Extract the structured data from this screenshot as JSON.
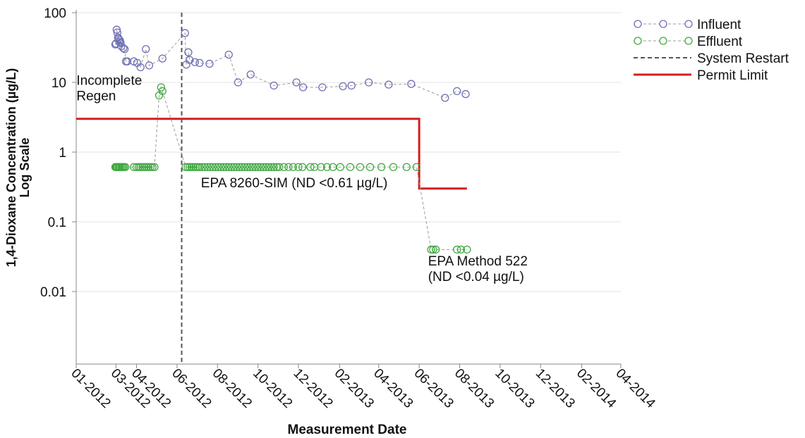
{
  "chart_data": {
    "type": "scatter",
    "title": "",
    "xlabel": "Measurement Date",
    "ylabel_line1": "1,4-Dioxane Concentration (µg/L)",
    "ylabel_line2": "Log Scale",
    "y_scale": "log",
    "ylim": [
      0.001,
      100
    ],
    "y_ticks": [
      {
        "value": 100,
        "label": "100"
      },
      {
        "value": 10,
        "label": "10"
      },
      {
        "value": 1,
        "label": "1"
      },
      {
        "value": 0.1,
        "label": "0.1"
      },
      {
        "value": 0.01,
        "label": "0.01"
      }
    ],
    "xlim": [
      "2012-01-01",
      "2014-04-01"
    ],
    "x_ticks": [
      {
        "date": "2012-01-01",
        "label": "01-2012"
      },
      {
        "date": "2012-03-01",
        "label": "03-2012"
      },
      {
        "date": "2012-04-01",
        "label": "04-2012"
      },
      {
        "date": "2012-06-01",
        "label": "06-2012"
      },
      {
        "date": "2012-08-01",
        "label": "08-2012"
      },
      {
        "date": "2012-10-01",
        "label": "10-2012"
      },
      {
        "date": "2012-12-01",
        "label": "12-2012"
      },
      {
        "date": "2013-02-01",
        "label": "02-2013"
      },
      {
        "date": "2013-04-01",
        "label": "04-2013"
      },
      {
        "date": "2013-06-01",
        "label": "06-2013"
      },
      {
        "date": "2013-08-01",
        "label": "08-2013"
      },
      {
        "date": "2013-10-01",
        "label": "10-2013"
      },
      {
        "date": "2013-12-01",
        "label": "12-2013"
      },
      {
        "date": "2014-02-01",
        "label": "02-2014"
      },
      {
        "date": "2014-04-01",
        "label": "04-2014"
      }
    ],
    "grid": "horizontal",
    "legend_position": "top-right",
    "series": [
      {
        "name": "Influent",
        "color": "#6f6fb5",
        "points": [
          {
            "x": "2012-02-29",
            "y": 35
          },
          {
            "x": "2012-03-01",
            "y": 36
          },
          {
            "x": "2012-03-02",
            "y": 57
          },
          {
            "x": "2012-03-03",
            "y": 52
          },
          {
            "x": "2012-03-04",
            "y": 44
          },
          {
            "x": "2012-03-05",
            "y": 42
          },
          {
            "x": "2012-03-06",
            "y": 38
          },
          {
            "x": "2012-03-07",
            "y": 40
          },
          {
            "x": "2012-03-08",
            "y": 37
          },
          {
            "x": "2012-03-09",
            "y": 33
          },
          {
            "x": "2012-03-12",
            "y": 31
          },
          {
            "x": "2012-03-14",
            "y": 30
          },
          {
            "x": "2012-03-16",
            "y": 20
          },
          {
            "x": "2012-03-18",
            "y": 20
          },
          {
            "x": "2012-03-28",
            "y": 20
          },
          {
            "x": "2012-04-02",
            "y": 19
          },
          {
            "x": "2012-04-07",
            "y": 16.5
          },
          {
            "x": "2012-04-15",
            "y": 30
          },
          {
            "x": "2012-04-20",
            "y": 17.5
          },
          {
            "x": "2012-05-10",
            "y": 22
          },
          {
            "x": "2012-06-13",
            "y": 51
          },
          {
            "x": "2012-06-15",
            "y": 18
          },
          {
            "x": "2012-06-18",
            "y": 27
          },
          {
            "x": "2012-06-20",
            "y": 21
          },
          {
            "x": "2012-06-28",
            "y": 19.5
          },
          {
            "x": "2012-07-05",
            "y": 19
          },
          {
            "x": "2012-07-20",
            "y": 18.5
          },
          {
            "x": "2012-08-18",
            "y": 25
          },
          {
            "x": "2012-09-01",
            "y": 10
          },
          {
            "x": "2012-09-20",
            "y": 13
          },
          {
            "x": "2012-10-25",
            "y": 9
          },
          {
            "x": "2012-11-28",
            "y": 10
          },
          {
            "x": "2012-12-08",
            "y": 8.5
          },
          {
            "x": "2013-01-06",
            "y": 8.5
          },
          {
            "x": "2013-02-06",
            "y": 8.8
          },
          {
            "x": "2013-02-19",
            "y": 9
          },
          {
            "x": "2013-03-17",
            "y": 10
          },
          {
            "x": "2013-04-16",
            "y": 9.3
          },
          {
            "x": "2013-05-20",
            "y": 9.5
          },
          {
            "x": "2013-07-10",
            "y": 6
          },
          {
            "x": "2013-07-28",
            "y": 7.5
          },
          {
            "x": "2013-08-10",
            "y": 6.8
          }
        ]
      },
      {
        "name": "Effluent",
        "color": "#3fa83f",
        "points": [
          {
            "x": "2012-02-29",
            "y": 0.61
          },
          {
            "x": "2012-03-01",
            "y": 0.61
          },
          {
            "x": "2012-03-02",
            "y": 0.61
          },
          {
            "x": "2012-03-03",
            "y": 0.61
          },
          {
            "x": "2012-03-05",
            "y": 0.61
          },
          {
            "x": "2012-03-06",
            "y": 0.61
          },
          {
            "x": "2012-03-07",
            "y": 0.61
          },
          {
            "x": "2012-03-09",
            "y": 0.61
          },
          {
            "x": "2012-03-11",
            "y": 0.61
          },
          {
            "x": "2012-03-13",
            "y": 0.61
          },
          {
            "x": "2012-03-15",
            "y": 0.61
          },
          {
            "x": "2012-03-28",
            "y": 0.61
          },
          {
            "x": "2012-04-01",
            "y": 0.61
          },
          {
            "x": "2012-04-04",
            "y": 0.61
          },
          {
            "x": "2012-04-07",
            "y": 0.61
          },
          {
            "x": "2012-04-10",
            "y": 0.61
          },
          {
            "x": "2012-04-13",
            "y": 0.61
          },
          {
            "x": "2012-04-16",
            "y": 0.61
          },
          {
            "x": "2012-04-19",
            "y": 0.61
          },
          {
            "x": "2012-04-22",
            "y": 0.61
          },
          {
            "x": "2012-04-25",
            "y": 0.61
          },
          {
            "x": "2012-04-28",
            "y": 0.61
          },
          {
            "x": "2012-05-05",
            "y": 6.5
          },
          {
            "x": "2012-05-08",
            "y": 8.5
          },
          {
            "x": "2012-05-10",
            "y": 7.5
          },
          {
            "x": "2012-06-14",
            "y": 0.61
          },
          {
            "x": "2012-06-17",
            "y": 0.61
          },
          {
            "x": "2012-06-20",
            "y": 0.61
          },
          {
            "x": "2012-06-23",
            "y": 0.61
          },
          {
            "x": "2012-06-26",
            "y": 0.61
          },
          {
            "x": "2012-06-29",
            "y": 0.61
          },
          {
            "x": "2012-07-02",
            "y": 0.61
          },
          {
            "x": "2012-07-05",
            "y": 0.61
          },
          {
            "x": "2012-07-09",
            "y": 0.61
          },
          {
            "x": "2012-07-13",
            "y": 0.61
          },
          {
            "x": "2012-07-17",
            "y": 0.61
          },
          {
            "x": "2012-07-21",
            "y": 0.61
          },
          {
            "x": "2012-07-25",
            "y": 0.61
          },
          {
            "x": "2012-07-29",
            "y": 0.61
          },
          {
            "x": "2012-08-02",
            "y": 0.61
          },
          {
            "x": "2012-08-06",
            "y": 0.61
          },
          {
            "x": "2012-08-10",
            "y": 0.61
          },
          {
            "x": "2012-08-14",
            "y": 0.61
          },
          {
            "x": "2012-08-18",
            "y": 0.61
          },
          {
            "x": "2012-08-22",
            "y": 0.61
          },
          {
            "x": "2012-08-26",
            "y": 0.61
          },
          {
            "x": "2012-08-30",
            "y": 0.61
          },
          {
            "x": "2012-09-03",
            "y": 0.61
          },
          {
            "x": "2012-09-07",
            "y": 0.61
          },
          {
            "x": "2012-09-11",
            "y": 0.61
          },
          {
            "x": "2012-09-15",
            "y": 0.61
          },
          {
            "x": "2012-09-19",
            "y": 0.61
          },
          {
            "x": "2012-09-23",
            "y": 0.61
          },
          {
            "x": "2012-09-27",
            "y": 0.61
          },
          {
            "x": "2012-10-01",
            "y": 0.61
          },
          {
            "x": "2012-10-05",
            "y": 0.61
          },
          {
            "x": "2012-10-09",
            "y": 0.61
          },
          {
            "x": "2012-10-13",
            "y": 0.61
          },
          {
            "x": "2012-10-17",
            "y": 0.61
          },
          {
            "x": "2012-10-21",
            "y": 0.61
          },
          {
            "x": "2012-10-25",
            "y": 0.61
          },
          {
            "x": "2012-10-29",
            "y": 0.61
          },
          {
            "x": "2012-11-02",
            "y": 0.61
          },
          {
            "x": "2012-11-09",
            "y": 0.61
          },
          {
            "x": "2012-11-16",
            "y": 0.61
          },
          {
            "x": "2012-11-23",
            "y": 0.61
          },
          {
            "x": "2012-12-01",
            "y": 0.61
          },
          {
            "x": "2012-12-07",
            "y": 0.61
          },
          {
            "x": "2012-12-19",
            "y": 0.61
          },
          {
            "x": "2012-12-25",
            "y": 0.61
          },
          {
            "x": "2013-01-04",
            "y": 0.61
          },
          {
            "x": "2013-01-13",
            "y": 0.61
          },
          {
            "x": "2013-01-22",
            "y": 0.61
          },
          {
            "x": "2013-02-02",
            "y": 0.61
          },
          {
            "x": "2013-02-17",
            "y": 0.61
          },
          {
            "x": "2013-03-04",
            "y": 0.61
          },
          {
            "x": "2013-03-19",
            "y": 0.61
          },
          {
            "x": "2013-04-05",
            "y": 0.61
          },
          {
            "x": "2013-04-23",
            "y": 0.61
          },
          {
            "x": "2013-05-13",
            "y": 0.61
          },
          {
            "x": "2013-05-28",
            "y": 0.61
          },
          {
            "x": "2013-06-19",
            "y": 0.04
          },
          {
            "x": "2013-06-22",
            "y": 0.04
          },
          {
            "x": "2013-06-26",
            "y": 0.04
          },
          {
            "x": "2013-07-28",
            "y": 0.04
          },
          {
            "x": "2013-08-03",
            "y": 0.04
          },
          {
            "x": "2013-08-12",
            "y": 0.04
          }
        ]
      }
    ],
    "system_restart": {
      "x": "2012-06-08",
      "label": "System Restart",
      "color": "#555555"
    },
    "permit_limit": {
      "label": "Permit Limit",
      "color": "#d21f1f",
      "segments": [
        {
          "x_start": "2012-01-01",
          "x_end": "2013-06-01",
          "y": 3
        },
        {
          "x_start": "2013-06-01",
          "x_end": "2013-08-12",
          "y": 0.3
        }
      ]
    },
    "annotations": [
      {
        "lines": [
          "Incomplete",
          "Regen"
        ],
        "anchor_date": "2012-05-08",
        "anchor_value": 8
      },
      {
        "lines": [
          "EPA 8260-SIM (ND <0.61 µg/L)"
        ],
        "anchor_date": "2012-11-01",
        "anchor_value": 0.5
      },
      {
        "lines": [
          "EPA Method 522",
          "(ND <0.04 µg/L)"
        ],
        "anchor_date": "2013-06-25",
        "anchor_value": 0.03
      }
    ]
  }
}
